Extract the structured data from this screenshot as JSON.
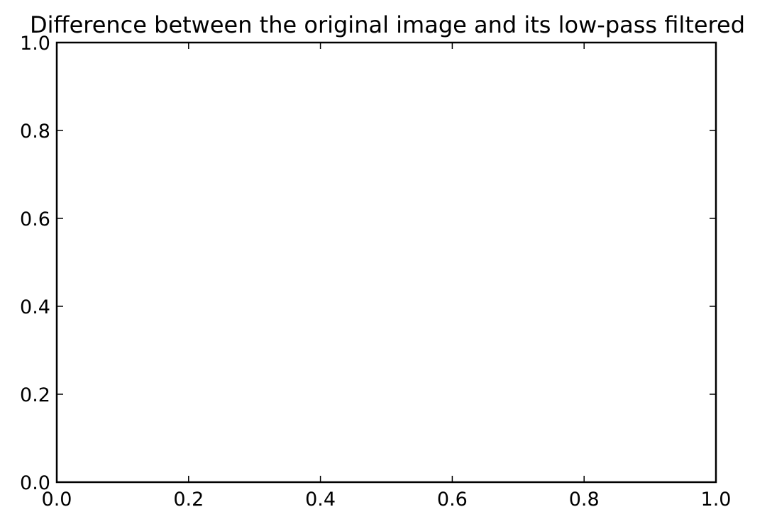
{
  "chart_data": {
    "type": "line",
    "title": "Difference between the original image and its low-pass filtered",
    "xlabel": "",
    "ylabel": "",
    "xlim": [
      0.0,
      1.0
    ],
    "ylim": [
      0.0,
      1.0
    ],
    "xticks": [
      0.0,
      0.2,
      0.4,
      0.6,
      0.8,
      1.0
    ],
    "yticks": [
      0.0,
      0.2,
      0.4,
      0.6,
      0.8,
      1.0
    ],
    "xtick_labels": [
      "0.0",
      "0.2",
      "0.4",
      "0.6",
      "0.8",
      "1.0"
    ],
    "ytick_labels": [
      "0.0",
      "0.2",
      "0.4",
      "0.6",
      "0.8",
      "1.0"
    ],
    "series": [],
    "grid": false,
    "legend": "none"
  }
}
